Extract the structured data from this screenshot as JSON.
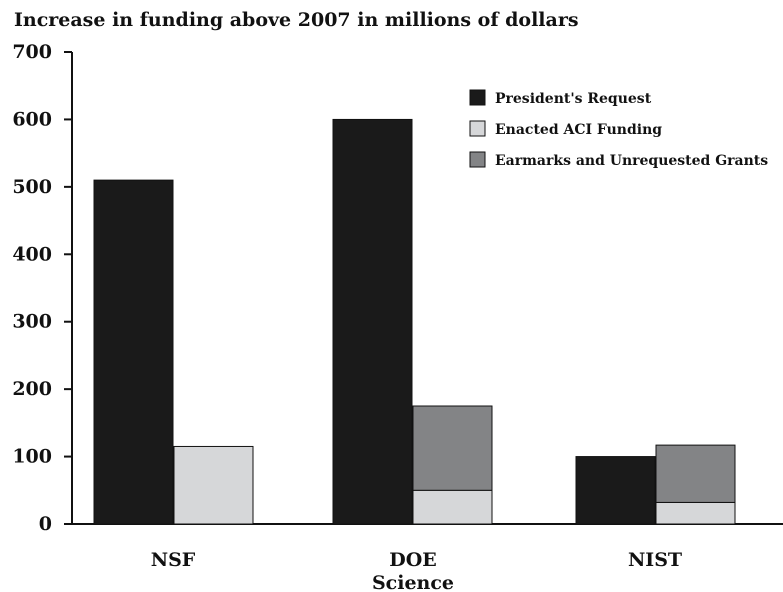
{
  "chart_data": {
    "type": "bar",
    "title": "Increase in funding above 2007 in millions of dollars",
    "xlabel": "",
    "ylabel": "",
    "ylim": [
      0,
      700
    ],
    "yticks": [
      "0",
      "100",
      "200",
      "300",
      "400",
      "500",
      "600",
      "700"
    ],
    "categories": [
      "NSF",
      "DOE Science",
      "NIST"
    ],
    "category_lines": [
      [
        "NSF"
      ],
      [
        "DOE",
        "Science"
      ],
      [
        "NIST"
      ]
    ],
    "legend_position": "top-right",
    "grid": false,
    "series": [
      {
        "name": "President's Request",
        "color": "#1a1a1a",
        "values": [
          510,
          600,
          100
        ],
        "group": "request"
      },
      {
        "name": "Enacted ACI Funding",
        "color": "#d6d7d9",
        "values": [
          115,
          50,
          32
        ],
        "group": "enacted"
      },
      {
        "name": "Earmarks and Unrequested Grants",
        "color": "#838486",
        "values": [
          0,
          125,
          85
        ],
        "group": "enacted"
      }
    ]
  }
}
